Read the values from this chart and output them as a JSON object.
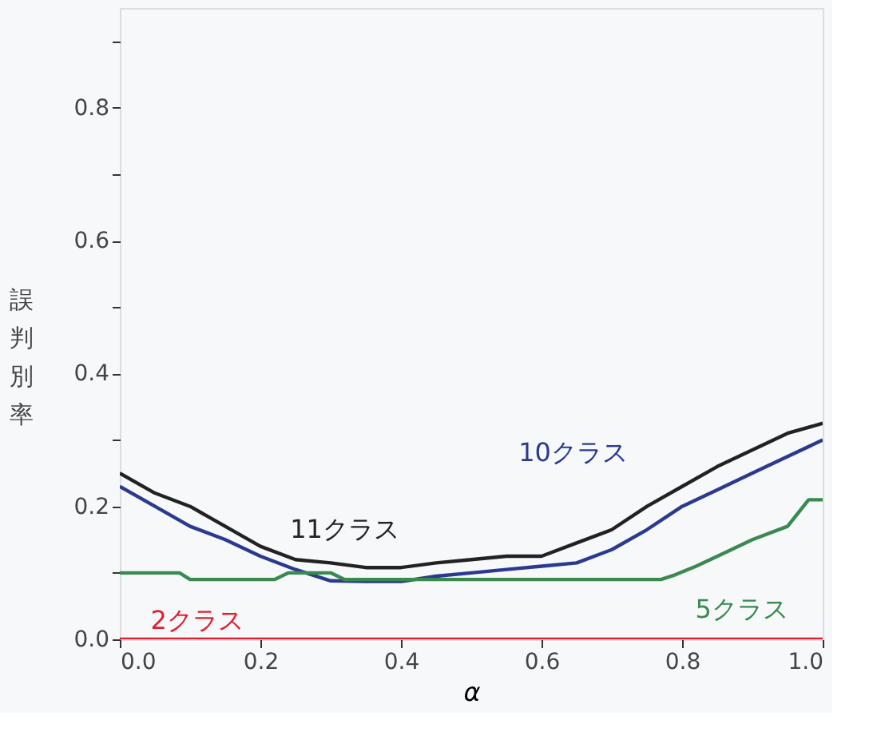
{
  "chart_data": {
    "type": "line",
    "xlabel": "α",
    "ylabel": "誤判別率",
    "xlim": [
      0,
      1
    ],
    "xticks": [
      {
        "value": 0,
        "label": "0.0"
      },
      {
        "value": 0.2,
        "label": "0.2"
      },
      {
        "value": 0.4,
        "label": "0.4"
      },
      {
        "value": 0.6,
        "label": "0.6"
      },
      {
        "value": 0.8,
        "label": "0.8"
      },
      {
        "value": 1,
        "label": "1.0"
      }
    ],
    "ylim": [
      0,
      0.95
    ],
    "yticks": [
      {
        "value": 0,
        "label": "0.0"
      },
      {
        "value": 0.1,
        "label": null
      },
      {
        "value": 0.2,
        "label": "0.2"
      },
      {
        "value": 0.3,
        "label": null
      },
      {
        "value": 0.4,
        "label": "0.4"
      },
      {
        "value": 0.5,
        "label": null
      },
      {
        "value": 0.6,
        "label": "0.6"
      },
      {
        "value": 0.7,
        "label": null
      },
      {
        "value": 0.8,
        "label": "0.8"
      },
      {
        "value": 0.9,
        "label": null
      }
    ],
    "grid": false,
    "legend": false,
    "marker": "none",
    "line_style": "solid",
    "series": [
      {
        "name": "11クラス",
        "color": "#222222",
        "x": [
          0,
          0.05,
          0.1,
          0.15,
          0.2,
          0.25,
          0.3,
          0.35,
          0.4,
          0.45,
          0.5,
          0.55,
          0.6,
          0.65,
          0.7,
          0.75,
          0.8,
          0.85,
          0.9,
          0.95,
          1.0
        ],
        "values": [
          0.25,
          0.22,
          0.2,
          0.17,
          0.14,
          0.12,
          0.115,
          0.108,
          0.108,
          0.115,
          0.12,
          0.125,
          0.125,
          0.145,
          0.165,
          0.2,
          0.23,
          0.26,
          0.285,
          0.31,
          0.325
        ]
      },
      {
        "name": "10クラス",
        "color": "#2b3a8f",
        "x": [
          0,
          0.05,
          0.1,
          0.15,
          0.2,
          0.25,
          0.3,
          0.35,
          0.4,
          0.45,
          0.5,
          0.55,
          0.6,
          0.65,
          0.7,
          0.75,
          0.8,
          0.85,
          0.9,
          0.95,
          1.0
        ],
        "values": [
          0.23,
          0.2,
          0.17,
          0.15,
          0.125,
          0.105,
          0.088,
          0.087,
          0.087,
          0.095,
          0.1,
          0.105,
          0.11,
          0.115,
          0.135,
          0.165,
          0.2,
          0.225,
          0.25,
          0.275,
          0.3
        ]
      },
      {
        "name": "5クラス",
        "color": "#3a8a50",
        "x": [
          0,
          0.085,
          0.1,
          0.22,
          0.24,
          0.3,
          0.32,
          0.77,
          0.79,
          0.82,
          0.86,
          0.9,
          0.95,
          0.98,
          1.0
        ],
        "values": [
          0.1,
          0.1,
          0.09,
          0.09,
          0.1,
          0.1,
          0.09,
          0.09,
          0.097,
          0.11,
          0.13,
          0.15,
          0.17,
          0.21,
          0.21
        ]
      },
      {
        "name": "2クラス",
        "color": "#e02030",
        "x": [
          0,
          1
        ],
        "values": [
          0,
          0
        ]
      }
    ]
  }
}
